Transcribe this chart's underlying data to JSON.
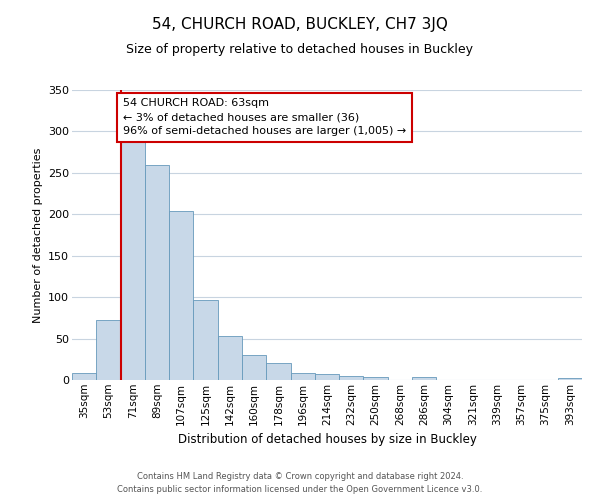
{
  "title": "54, CHURCH ROAD, BUCKLEY, CH7 3JQ",
  "subtitle": "Size of property relative to detached houses in Buckley",
  "xlabel": "Distribution of detached houses by size in Buckley",
  "ylabel": "Number of detached properties",
  "bar_labels": [
    "35sqm",
    "53sqm",
    "71sqm",
    "89sqm",
    "107sqm",
    "125sqm",
    "142sqm",
    "160sqm",
    "178sqm",
    "196sqm",
    "214sqm",
    "232sqm",
    "250sqm",
    "268sqm",
    "286sqm",
    "304sqm",
    "321sqm",
    "339sqm",
    "357sqm",
    "375sqm",
    "393sqm"
  ],
  "bar_heights": [
    9,
    72,
    287,
    260,
    204,
    96,
    53,
    30,
    20,
    8,
    7,
    5,
    4,
    0,
    4,
    0,
    0,
    0,
    0,
    0,
    2
  ],
  "bar_color": "#c8d8e8",
  "bar_edge_color": "#6699bb",
  "ylim": [
    0,
    350
  ],
  "yticks": [
    0,
    50,
    100,
    150,
    200,
    250,
    300,
    350
  ],
  "vline_color": "#cc0000",
  "annotation_title": "54 CHURCH ROAD: 63sqm",
  "annotation_line1": "← 3% of detached houses are smaller (36)",
  "annotation_line2": "96% of semi-detached houses are larger (1,005) →",
  "annotation_box_color": "#ffffff",
  "annotation_box_edge": "#cc0000",
  "footer1": "Contains HM Land Registry data © Crown copyright and database right 2024.",
  "footer2": "Contains public sector information licensed under the Open Government Licence v3.0.",
  "background_color": "#ffffff",
  "grid_color": "#c8d4e0",
  "title_fontsize": 11,
  "subtitle_fontsize": 9,
  "ylabel_fontsize": 8,
  "xlabel_fontsize": 8.5,
  "tick_fontsize": 7.5,
  "footer_fontsize": 6,
  "annot_fontsize": 8
}
